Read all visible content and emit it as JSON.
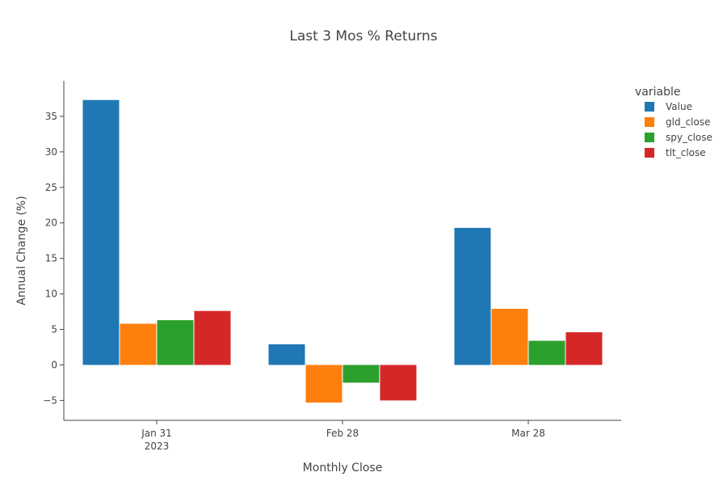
{
  "chart_data": {
    "type": "bar",
    "title": "Last 3 Mos % Returns",
    "xlabel": "Monthly Close",
    "ylabel": "Annual Change (%)",
    "categories": [
      "Jan 31",
      "Feb 28",
      "Mar 28"
    ],
    "category_sublabels": [
      "2023",
      "",
      ""
    ],
    "series": [
      {
        "name": "Value",
        "color": "#1f77b4",
        "values": [
          37.3,
          2.9,
          19.3
        ]
      },
      {
        "name": "gld_close",
        "color": "#ff7f0e",
        "values": [
          5.8,
          -5.3,
          7.9
        ]
      },
      {
        "name": "spy_close",
        "color": "#2ca02c",
        "values": [
          6.3,
          -2.5,
          3.4
        ]
      },
      {
        "name": "tlt_close",
        "color": "#d62728",
        "values": [
          7.6,
          -5.0,
          4.6
        ]
      }
    ],
    "ylim": [
      -7.8,
      40.0
    ],
    "yticks": [
      -5,
      0,
      5,
      10,
      15,
      20,
      25,
      30,
      35
    ],
    "ytick_labels": [
      "−5",
      "0",
      "5",
      "10",
      "15",
      "20",
      "25",
      "30",
      "35"
    ],
    "legend_title": "variable",
    "legend_position": "top-right",
    "grid": false
  }
}
